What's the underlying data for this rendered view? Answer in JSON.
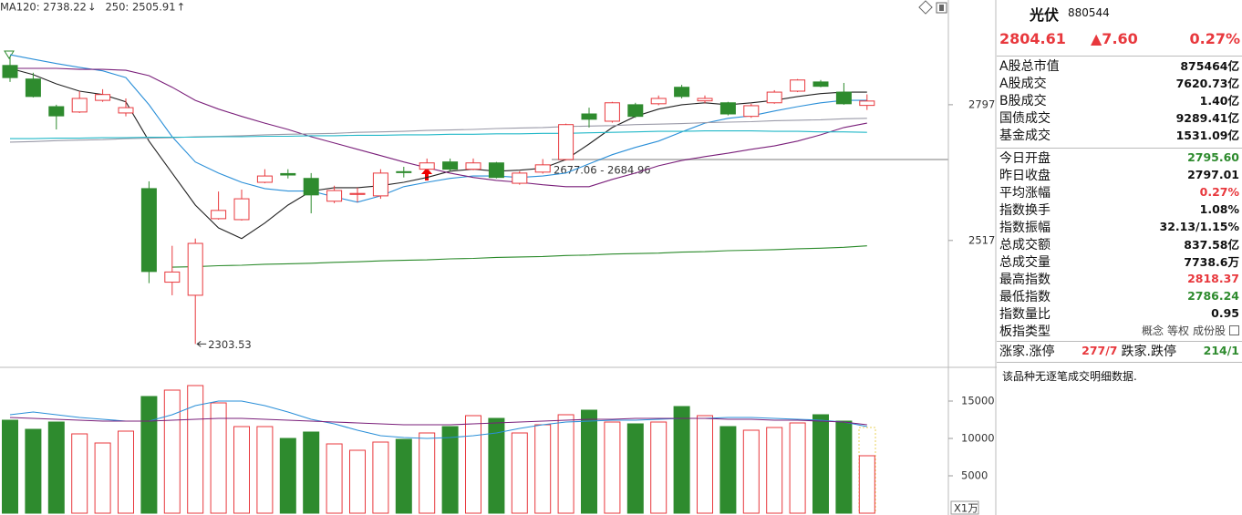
{
  "chart_data": [
    {
      "type": "candlestick",
      "open": [
        2878,
        2850,
        2793,
        2782,
        2806,
        2780,
        2624,
        2431,
        2404,
        2562,
        2560,
        2637,
        2655,
        2645,
        2598,
        2612,
        2609,
        2659,
        2664,
        2679,
        2664,
        2677,
        2635,
        2658,
        2684,
        2778,
        2763,
        2797,
        2799,
        2833,
        2805,
        2801,
        2773,
        2801,
        2825,
        2844,
        2823,
        2795.6
      ],
      "close": [
        2853,
        2814,
        2774,
        2810,
        2818,
        2791,
        2453,
        2452,
        2511,
        2579,
        2603,
        2650,
        2652,
        2611,
        2620,
        2614,
        2656,
        2657,
        2677,
        2664,
        2677,
        2647,
        2656,
        2673,
        2756,
        2767,
        2801,
        2773,
        2810,
        2814,
        2810,
        2778,
        2795,
        2823,
        2848,
        2835,
        2799,
        2804.61
      ],
      "high": [
        2897,
        2863,
        2797,
        2825,
        2829,
        2810,
        2639,
        2506,
        2521,
        2618,
        2622,
        2664,
        2664,
        2656,
        2630,
        2626,
        2664,
        2669,
        2686,
        2686,
        2686,
        2679,
        2660,
        2684.96,
        2758,
        2791,
        2803,
        2801,
        2816,
        2838,
        2816,
        2803,
        2799,
        2827,
        2850,
        2848,
        2842,
        2818.37
      ],
      "low": [
        2844,
        2812,
        2746,
        2780,
        2803,
        2773,
        2429,
        2404,
        2303.53,
        2560,
        2558,
        2635,
        2645,
        2573,
        2594,
        2596,
        2603,
        2647,
        2662,
        2660,
        2662,
        2645,
        2632,
        2655,
        2682,
        2750,
        2760,
        2770,
        2796,
        2810,
        2800,
        2775,
        2770,
        2799,
        2823,
        2833,
        2797,
        2786.24
      ],
      "up_color": "#e8383d",
      "down_color": "#2e8b2e",
      "ylim": [
        2261,
        3013
      ],
      "yticks": [
        2517,
        2797
      ],
      "lines": [
        {
          "color": "#222222",
          "values": [
            2872,
            2859,
            2840,
            2825,
            2818,
            2803,
            2722,
            2656,
            2590,
            2543,
            2521,
            2553,
            2590,
            2619,
            2626,
            2626,
            2630,
            2637,
            2647,
            2660,
            2664,
            2660,
            2662,
            2666,
            2684,
            2716,
            2750,
            2773,
            2788,
            2797,
            2801,
            2797,
            2801,
            2806,
            2814,
            2820,
            2823,
            2823
          ]
        },
        {
          "color": "#2a8fd8",
          "values": [
            2900,
            2891,
            2882,
            2874,
            2867,
            2853,
            2797,
            2731,
            2679,
            2656,
            2637,
            2624,
            2619,
            2619,
            2607,
            2596,
            2609,
            2628,
            2637,
            2645,
            2650,
            2650,
            2647,
            2650,
            2656,
            2675,
            2694,
            2709,
            2722,
            2741,
            2759,
            2769,
            2774,
            2784,
            2793,
            2801,
            2806,
            2806
          ]
        },
        {
          "color": "#7a1f7a",
          "values": [
            2872,
            2872,
            2872,
            2870,
            2870,
            2868,
            2857,
            2833,
            2806,
            2788,
            2773,
            2759,
            2746,
            2731,
            2718,
            2705,
            2692,
            2679,
            2667,
            2656,
            2647,
            2641,
            2637,
            2632,
            2628,
            2628,
            2643,
            2656,
            2671,
            2682,
            2690,
            2697,
            2705,
            2712,
            2722,
            2735,
            2750,
            2759
          ]
        },
        {
          "color": "#9a9aa8",
          "values": [
            2720,
            2721,
            2723,
            2724,
            2725,
            2727,
            2728,
            2729,
            2731,
            2732,
            2733,
            2735,
            2736,
            2737,
            2738,
            2740,
            2741,
            2742,
            2744,
            2745,
            2746,
            2748,
            2749,
            2750,
            2752,
            2753,
            2754,
            2756,
            2757,
            2758,
            2760,
            2761,
            2762,
            2764,
            2765,
            2766,
            2768,
            2769
          ]
        },
        {
          "name": "MA120: 2738.22",
          "trend": "↓",
          "trend_color": "#2e8b2e",
          "color": "#22b8c8",
          "values": [
            2727,
            2727,
            2728,
            2728,
            2729,
            2729,
            2730,
            2730,
            2730,
            2731,
            2731,
            2732,
            2732,
            2733,
            2733,
            2734,
            2734,
            2735,
            2735,
            2736,
            2736,
            2737,
            2737,
            2738,
            2738,
            2739,
            2740,
            2741,
            2742,
            2742,
            2743,
            2743,
            2743,
            2742,
            2742,
            2741,
            2741,
            2740
          ]
        },
        {
          "name": "250: 2505.91",
          "trend": "↑",
          "trend_color": "#e8383d",
          "color": "#2a8a2a",
          "values": [
            null,
            null,
            null,
            null,
            null,
            null,
            null,
            2462,
            2463,
            2465,
            2466,
            2468,
            2469,
            2470,
            2472,
            2473,
            2475,
            2476,
            2477,
            2479,
            2480,
            2482,
            2483,
            2484,
            2486,
            2487,
            2489,
            2490,
            2491,
            2493,
            2494,
            2496,
            2497,
            2498,
            2500,
            2501,
            2503,
            2506
          ]
        }
      ],
      "annotations": [
        "2677.06 - 2684.96"
      ]
    },
    {
      "type": "bar",
      "values": [
        12439,
        11220,
        12195,
        10610,
        9390,
        10976,
        15610,
        16463,
        17073,
        14756,
        11585,
        11585,
        10000,
        10854,
        9268,
        8415,
        9512,
        9878,
        10732,
        11585,
        13049,
        12683,
        10732,
        11829,
        13171,
        13780,
        12195,
        11951,
        12195,
        14268,
        13049,
        11585,
        11098,
        11463,
        12073,
        13171,
        12317,
        7683
      ],
      "ylim": [
        0,
        19268
      ],
      "yticks": [
        5000,
        10000,
        15000
      ],
      "unit": "X1万",
      "lines": [
        {
          "color": "#2a8fd8",
          "values": [
            13171,
            13537,
            13171,
            12805,
            12561,
            12317,
            12317,
            13171,
            14390,
            15000,
            15000,
            14390,
            13537,
            12561,
            11951,
            11098,
            10366,
            10122,
            10000,
            10122,
            10366,
            10732,
            11341,
            11829,
            12195,
            12317,
            12439,
            12439,
            12561,
            12683,
            12683,
            12805,
            12805,
            12683,
            12561,
            12439,
            12195,
            11585
          ]
        },
        {
          "color": "#7a1f7a",
          "values": [
            12805,
            12683,
            12561,
            12439,
            12317,
            12317,
            12317,
            12439,
            12561,
            12683,
            12683,
            12561,
            12439,
            12317,
            12195,
            12073,
            11951,
            11829,
            11829,
            11829,
            11951,
            12073,
            12195,
            12317,
            12439,
            12561,
            12561,
            12683,
            12683,
            12683,
            12683,
            12561,
            12561,
            12439,
            12439,
            12317,
            12195,
            11829
          ]
        }
      ]
    }
  ],
  "panel": {
    "name": "光伏",
    "code": "880544",
    "price": "2804.61",
    "change": "▲7.60",
    "change_pct": "0.27%",
    "quote_color": "#e8383d",
    "market_rows": [
      {
        "label": "A股总市值",
        "value": "875464亿"
      },
      {
        "label": "A股成交",
        "value": "7620.73亿"
      },
      {
        "label": "B股成交",
        "value": "1.40亿"
      },
      {
        "label": "国债成交",
        "value": "9289.41亿"
      },
      {
        "label": "基金成交",
        "value": "1531.09亿"
      }
    ],
    "index_rows": [
      {
        "label": "今日开盘",
        "value": "2795.60",
        "color": "#2e8b2e"
      },
      {
        "label": "昨日收盘",
        "value": "2797.01"
      },
      {
        "label": "平均涨幅",
        "value": "0.27%",
        "color": "#e8383d"
      },
      {
        "label": "指数换手",
        "value": "1.08%"
      },
      {
        "label": "指数振幅",
        "value": "32.13/1.15%"
      },
      {
        "label": "总成交额",
        "value": "837.58亿"
      },
      {
        "label": "总成交量",
        "value": "7738.6万"
      },
      {
        "label": "最高指数",
        "value": "2818.37",
        "color": "#e8383d"
      },
      {
        "label": "最低指数",
        "value": "2786.24",
        "color": "#2e8b2e"
      },
      {
        "label": "指数量比",
        "value": "0.95"
      }
    ],
    "index_type": {
      "label": "板指类型",
      "options": [
        "概念",
        "等权",
        "成份股"
      ]
    },
    "breadth": {
      "up_label": "涨家.涨停",
      "up_value": "277/7",
      "up_color": "#e8383d",
      "down_label": "跌家.跌停",
      "down_value": "214/1",
      "down_color": "#2e8b2e"
    },
    "note": "该品种无逐笔成交明细数据."
  }
}
